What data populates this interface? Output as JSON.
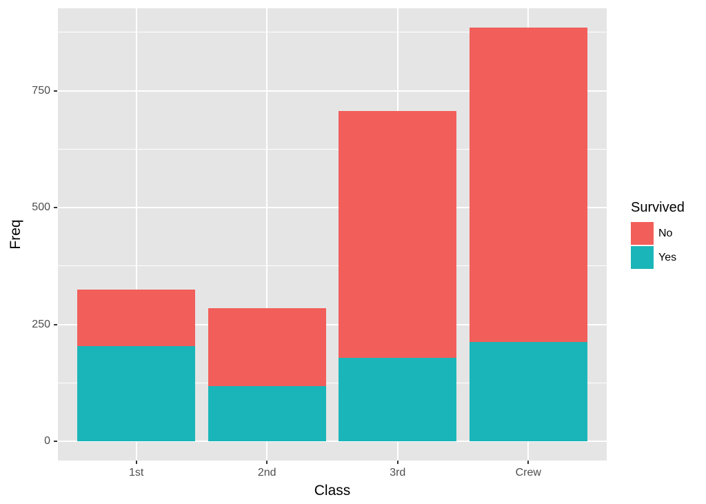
{
  "figure": {
    "background": "#FFFFFF",
    "panel_background": "#E5E5E5",
    "gridline_color": "#FFFFFF",
    "axis_text_color": "#4D4D4D",
    "tick_color": "#333333"
  },
  "axes": {
    "x_title": "Class",
    "y_title": "Freq",
    "x_tick_labels": [
      "1st",
      "2nd",
      "3rd",
      "Crew"
    ],
    "y_tick_labels": [
      "0",
      "250",
      "500",
      "750"
    ]
  },
  "legend": {
    "title": "Survived",
    "position": "right",
    "items": [
      {
        "label": "No",
        "color": "#F25E5A"
      },
      {
        "label": "Yes",
        "color": "#1AB5B8"
      }
    ]
  },
  "chart_data": {
    "type": "bar",
    "stacked": true,
    "categories": [
      "1st",
      "2nd",
      "3rd",
      "Crew"
    ],
    "series": [
      {
        "name": "No",
        "color": "#F25E5A",
        "values": [
          122,
          167,
          528,
          673
        ]
      },
      {
        "name": "Yes",
        "color": "#1AB5B8",
        "values": [
          203,
          118,
          178,
          212
        ]
      }
    ],
    "totals": [
      325,
      285,
      706,
      885
    ],
    "title": "",
    "xlabel": "Class",
    "ylabel": "Freq",
    "y_major_ticks": [
      0,
      250,
      500,
      750
    ],
    "y_minor_gridlines": [
      125,
      375,
      625,
      875
    ],
    "ylim": [
      0,
      926
    ],
    "grid": true,
    "legend_position": "right"
  }
}
